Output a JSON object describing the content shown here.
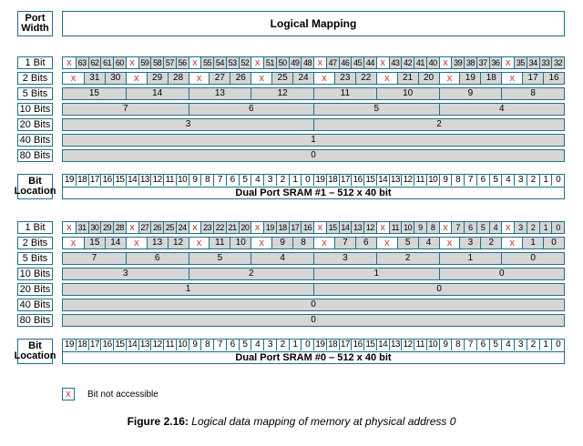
{
  "header": {
    "port_width_label": "Port\nWidth",
    "logical_mapping_label": "Logical Mapping"
  },
  "colors": {
    "border": "#1f6f86",
    "fill": "#d6d6d6",
    "not_accessible": "#c0392b"
  },
  "x_mark": "x",
  "bit_location_label": "Bit\nLocation",
  "sections": [
    {
      "sram_name": "Dual Port SRAM #1  –  512 x 40 bit",
      "rows": [
        {
          "label": "1 Bit",
          "cells": [
            "x",
            "63",
            "62",
            "61",
            "60",
            "x",
            "59",
            "58",
            "57",
            "56",
            "x",
            "55",
            "54",
            "53",
            "52",
            "x",
            "51",
            "50",
            "49",
            "48",
            "x",
            "47",
            "46",
            "45",
            "44",
            "x",
            "43",
            "42",
            "41",
            "40",
            "x",
            "39",
            "38",
            "37",
            "36",
            "x",
            "35",
            "34",
            "33",
            "32"
          ]
        },
        {
          "label": "2 Bits",
          "cells": [
            "x",
            "31",
            "30",
            "x",
            "29",
            "28",
            "x",
            "27",
            "26",
            "x",
            "25",
            "24",
            "x",
            "23",
            "22",
            "x",
            "21",
            "20",
            "x",
            "19",
            "18",
            "x",
            "17",
            "16"
          ]
        },
        {
          "label": "5 Bits",
          "cells": [
            "15",
            "14",
            "13",
            "12",
            "11",
            "10",
            "9",
            "8"
          ]
        },
        {
          "label": "10 Bits",
          "cells": [
            "7",
            "6",
            "5",
            "4"
          ]
        },
        {
          "label": "20 Bits",
          "cells": [
            "3",
            "2"
          ]
        },
        {
          "label": "40 Bits",
          "cells": [
            "1"
          ]
        },
        {
          "label": "80 Bits",
          "cells": [
            "0"
          ]
        }
      ],
      "bit_locations": [
        "19",
        "18",
        "17",
        "16",
        "15",
        "14",
        "13",
        "12",
        "11",
        "10",
        "9",
        "8",
        "7",
        "6",
        "5",
        "4",
        "3",
        "2",
        "1",
        "0",
        "19",
        "18",
        "17",
        "16",
        "15",
        "14",
        "13",
        "12",
        "11",
        "10",
        "9",
        "8",
        "7",
        "6",
        "5",
        "4",
        "3",
        "2",
        "1",
        "0"
      ]
    },
    {
      "sram_name": "Dual Port SRAM #0  –  512 x 40 bit",
      "rows": [
        {
          "label": "1 Bit",
          "cells": [
            "x",
            "31",
            "30",
            "29",
            "28",
            "x",
            "27",
            "26",
            "25",
            "24",
            "x",
            "23",
            "22",
            "21",
            "20",
            "x",
            "19",
            "18",
            "17",
            "16",
            "x",
            "15",
            "14",
            "13",
            "12",
            "x",
            "11",
            "10",
            "9",
            "8",
            "x",
            "7",
            "6",
            "5",
            "4",
            "x",
            "3",
            "2",
            "1",
            "0"
          ]
        },
        {
          "label": "2 Bits",
          "cells": [
            "x",
            "15",
            "14",
            "x",
            "13",
            "12",
            "x",
            "11",
            "10",
            "x",
            "9",
            "8",
            "x",
            "7",
            "6",
            "x",
            "5",
            "4",
            "x",
            "3",
            "2",
            "x",
            "1",
            "0"
          ]
        },
        {
          "label": "5 Bits",
          "cells": [
            "7",
            "6",
            "5",
            "4",
            "3",
            "2",
            "1",
            "0"
          ]
        },
        {
          "label": "10 Bits",
          "cells": [
            "3",
            "2",
            "1",
            "0"
          ]
        },
        {
          "label": "20 Bits",
          "cells": [
            "1",
            "0"
          ]
        },
        {
          "label": "40 Bits",
          "cells": [
            "0"
          ]
        },
        {
          "label": "80 Bits",
          "cells": [
            "0"
          ]
        }
      ],
      "bit_locations": [
        "19",
        "18",
        "17",
        "16",
        "15",
        "14",
        "13",
        "12",
        "11",
        "10",
        "9",
        "8",
        "7",
        "6",
        "5",
        "4",
        "3",
        "2",
        "1",
        "0",
        "19",
        "18",
        "17",
        "16",
        "15",
        "14",
        "13",
        "12",
        "11",
        "10",
        "9",
        "8",
        "7",
        "6",
        "5",
        "4",
        "3",
        "2",
        "1",
        "0"
      ]
    }
  ],
  "legend": {
    "symbol": "x",
    "text": "Bit not accessible"
  },
  "caption": {
    "label": "Figure 2.16:",
    "text": "Logical data mapping of memory at physical address 0"
  }
}
